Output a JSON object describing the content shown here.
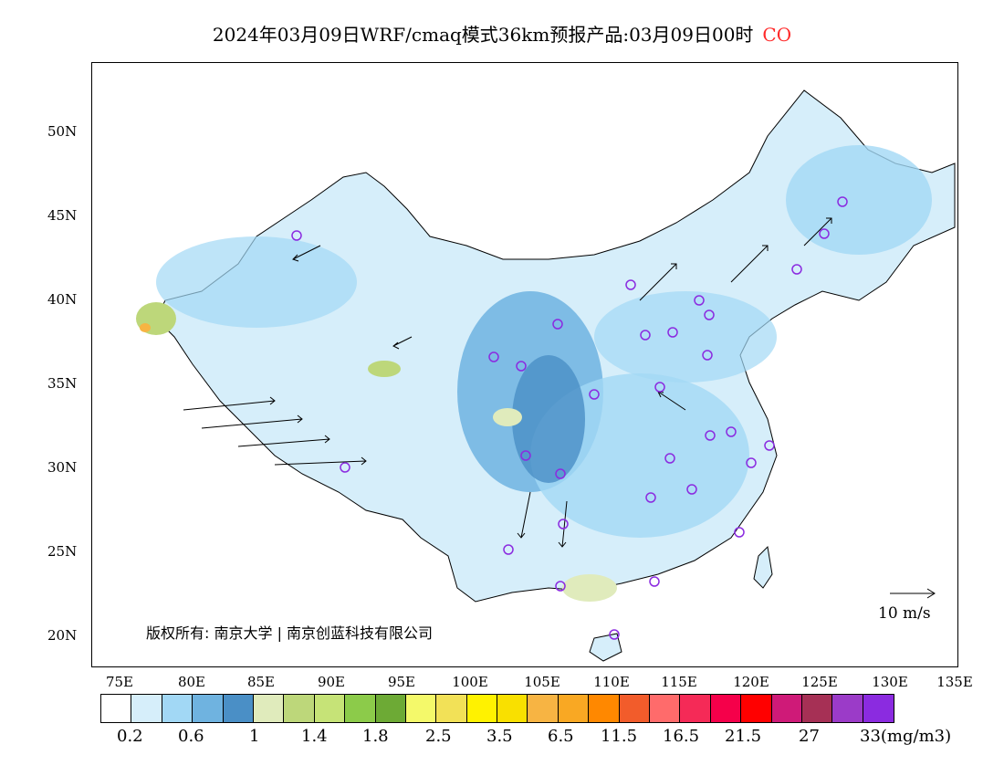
{
  "title": {
    "main": "2024年03月09日WRF/cmaq模式36km预报产品:03月09日00时",
    "species": "CO",
    "species_color": "#ff2a2a"
  },
  "axes": {
    "lat_labels": [
      "50N",
      "45N",
      "40N",
      "35N",
      "30N",
      "25N",
      "20N"
    ],
    "lon_labels": [
      "75E",
      "80E",
      "85E",
      "90E",
      "95E",
      "100E",
      "105E",
      "110E",
      "115E",
      "120E",
      "125E",
      "130E",
      "135E"
    ]
  },
  "copyright": "版权所有: 南京大学 | 南京创蓝科技有限公司",
  "wind_scale": {
    "label": "10 m/s"
  },
  "legend": {
    "colors": [
      "#ffffff",
      "#d6eefa",
      "#a2d8f5",
      "#6fb3e0",
      "#4a8fc6",
      "#e0ebbc",
      "#bdd77a",
      "#c6e377",
      "#8ccb4a",
      "#6daa35",
      "#f4f96a",
      "#f2e157",
      "#fff200",
      "#f9e000",
      "#f7b443",
      "#f9a823",
      "#ff8800",
      "#f25c2b",
      "#ff6b6b",
      "#f52a57",
      "#f5004a",
      "#ff0000",
      "#cf1a78",
      "#a63055",
      "#9b3bc8",
      "#8b2be0"
    ],
    "labels": [
      "0.2",
      "0.6",
      "1",
      "1.4",
      "1.8",
      "2.5",
      "3.5",
      "6.5",
      "11.5",
      "16.5",
      "21.5",
      "27",
      "33(mg/m3)"
    ]
  }
}
